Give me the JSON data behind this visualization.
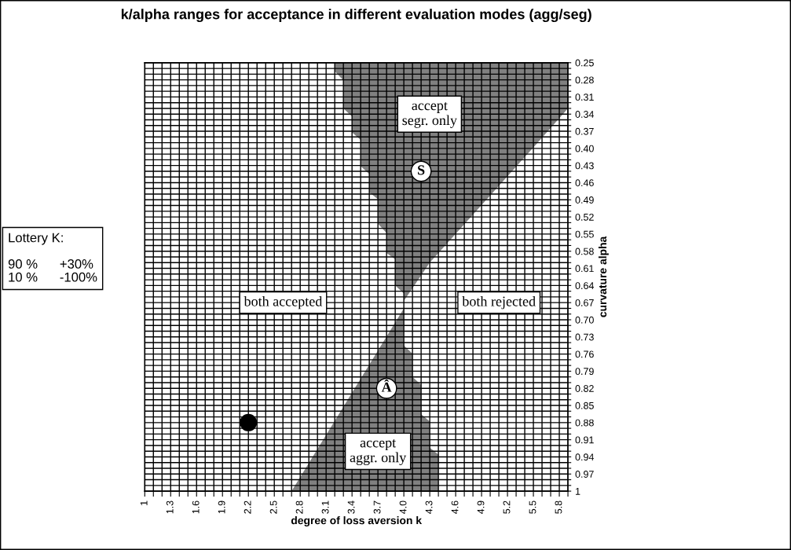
{
  "chart_data": {
    "type": "area",
    "title": "k/alpha ranges for acceptance in different evaluation modes (agg/seg)",
    "xlabel": "degree of loss aversion k",
    "ylabel": "curvature alpha",
    "xlim": [
      1,
      5.9
    ],
    "ylim": [
      1,
      0.25
    ],
    "grid": true,
    "series": [
      {
        "color": "#808080",
        "x": [
          3.2,
          3.2,
          3.3,
          3.3,
          3.4,
          3.4,
          3.5,
          3.5,
          3.6,
          3.6,
          3.7,
          3.7,
          3.8,
          3.8,
          3.9,
          3.9,
          4.0,
          4.0,
          4.3,
          5.55,
          5.9,
          5.9
        ],
        "values": [
          0.25,
          0.265,
          0.281,
          0.33,
          0.344,
          0.372,
          0.385,
          0.431,
          0.445,
          0.477,
          0.489,
          0.532,
          0.548,
          0.583,
          0.594,
          0.64,
          0.654,
          0.667,
          0.6,
          0.39,
          0.33,
          0.25
        ]
      },
      {
        "color": "#808080",
        "x": [
          2.7,
          4.0,
          4.0,
          4.1,
          4.1,
          4.2,
          4.2,
          4.3,
          4.3,
          4.4,
          4.4
        ],
        "values": [
          1.0,
          0.68,
          0.745,
          0.759,
          0.8,
          0.814,
          0.865,
          0.878,
          0.924,
          0.936,
          1.0
        ]
      },
      {
        "type": "scatter",
        "color": "#000000",
        "marker": "circle",
        "x": [
          2.2
        ],
        "values": [
          0.88
        ]
      }
    ],
    "annotations": [
      "accept\nsegr. only",
      {
        "text": "S",
        "x": 4.2,
        "y": 0.44
      },
      "both accepted",
      "both rejected",
      {
        "text": "Â",
        "x": 3.8,
        "y": 0.82
      },
      "accept\naggr. only",
      "Lottery K:\n\n90 %      +30%\n10 %      -100%"
    ],
    "xticks": [
      1,
      {
        "value": 1.1,
        "label": null
      },
      {
        "value": 1.2,
        "label": null
      },
      1.3,
      {
        "value": 1.4,
        "label": null
      },
      {
        "value": 1.5,
        "label": null
      },
      1.6,
      {
        "value": 1.7,
        "label": null
      },
      {
        "value": 1.8,
        "label": null
      },
      1.9,
      {
        "value": 2.0,
        "label": null
      },
      {
        "value": 2.1,
        "label": null
      },
      2.2,
      {
        "value": 2.3,
        "label": null
      },
      {
        "value": 2.4,
        "label": null
      },
      2.5,
      {
        "value": 2.6,
        "label": null
      },
      {
        "value": 2.7,
        "label": null
      },
      2.8,
      {
        "value": 2.9,
        "label": null
      },
      {
        "value": 3.0,
        "label": null
      },
      3.1,
      {
        "value": 3.2,
        "label": null
      },
      {
        "value": 3.3,
        "label": null
      },
      3.4,
      {
        "value": 3.5,
        "label": null
      },
      {
        "value": 3.6,
        "label": null
      },
      3.7,
      {
        "value": 3.8,
        "label": null
      },
      {
        "value": 3.9,
        "label": null
      },
      {
        "value": 4,
        "label": "4.0"
      },
      {
        "value": 4.1,
        "label": null
      },
      {
        "value": 4.2,
        "label": null
      },
      4.3,
      {
        "value": 4.4,
        "label": null
      },
      {
        "value": 4.5,
        "label": null
      },
      4.6,
      {
        "value": 4.7,
        "label": null
      },
      {
        "value": 4.8,
        "label": null
      },
      4.9,
      {
        "value": 5.0,
        "label": null
      },
      {
        "value": 5.1,
        "label": null
      },
      5.2,
      {
        "value": 5.3,
        "label": null
      },
      {
        "value": 5.4,
        "label": null
      },
      5.5,
      {
        "value": 5.6,
        "label": null
      },
      {
        "value": 5.7,
        "label": null
      },
      5.8,
      {
        "value": 5.9,
        "label": null
      }
    ],
    "yticks": [
      0.25,
      {
        "value": 0.26,
        "label": null
      },
      {
        "value": 0.27,
        "label": null
      },
      0.28,
      {
        "value": 0.29,
        "label": null
      },
      {
        "value": 0.3,
        "label": null
      },
      0.31,
      {
        "value": 0.32,
        "label": null
      },
      {
        "value": 0.33,
        "label": null
      },
      0.34,
      {
        "value": 0.35,
        "label": null
      },
      {
        "value": 0.36,
        "label": null
      },
      0.37,
      {
        "value": 0.38,
        "label": null
      },
      {
        "value": 0.39,
        "label": null
      },
      {
        "value": 0.4,
        "label": "0.40"
      },
      {
        "value": 0.41,
        "label": null
      },
      {
        "value": 0.42,
        "label": null
      },
      0.43,
      {
        "value": 0.44,
        "label": null
      },
      {
        "value": 0.45,
        "label": null
      },
      0.46,
      {
        "value": 0.47,
        "label": null
      },
      {
        "value": 0.48,
        "label": null
      },
      0.49,
      {
        "value": 0.5,
        "label": null
      },
      {
        "value": 0.51,
        "label": null
      },
      0.52,
      {
        "value": 0.53,
        "label": null
      },
      {
        "value": 0.54,
        "label": null
      },
      0.55,
      {
        "value": 0.56,
        "label": null
      },
      {
        "value": 0.57,
        "label": null
      },
      0.58,
      {
        "value": 0.59,
        "label": null
      },
      {
        "value": 0.6,
        "label": null
      },
      0.61,
      {
        "value": 0.62,
        "label": null
      },
      {
        "value": 0.63,
        "label": null
      },
      0.64,
      {
        "value": 0.65,
        "label": null
      },
      {
        "value": 0.66,
        "label": null
      },
      0.67,
      {
        "value": 0.68,
        "label": null
      },
      {
        "value": 0.69,
        "label": null
      },
      {
        "value": 0.7,
        "label": "0.70"
      },
      {
        "value": 0.71,
        "label": null
      },
      {
        "value": 0.72,
        "label": null
      },
      0.73,
      {
        "value": 0.74,
        "label": null
      },
      {
        "value": 0.75,
        "label": null
      },
      0.76,
      {
        "value": 0.77,
        "label": null
      },
      {
        "value": 0.78,
        "label": null
      },
      0.79,
      {
        "value": 0.8,
        "label": null
      },
      {
        "value": 0.81,
        "label": null
      },
      0.82,
      {
        "value": 0.83,
        "label": null
      },
      {
        "value": 0.84,
        "label": null
      },
      0.85,
      {
        "value": 0.86,
        "label": null
      },
      {
        "value": 0.87,
        "label": null
      },
      0.88,
      {
        "value": 0.89,
        "label": null
      },
      {
        "value": 0.9,
        "label": null
      },
      0.91,
      {
        "value": 0.92,
        "label": null
      },
      {
        "value": 0.93,
        "label": null
      },
      0.94,
      {
        "value": 0.95,
        "label": null
      },
      {
        "value": 0.96,
        "label": null
      },
      0.97,
      {
        "value": 0.98,
        "label": null
      },
      {
        "value": 0.99,
        "label": null
      },
      1
    ]
  }
}
